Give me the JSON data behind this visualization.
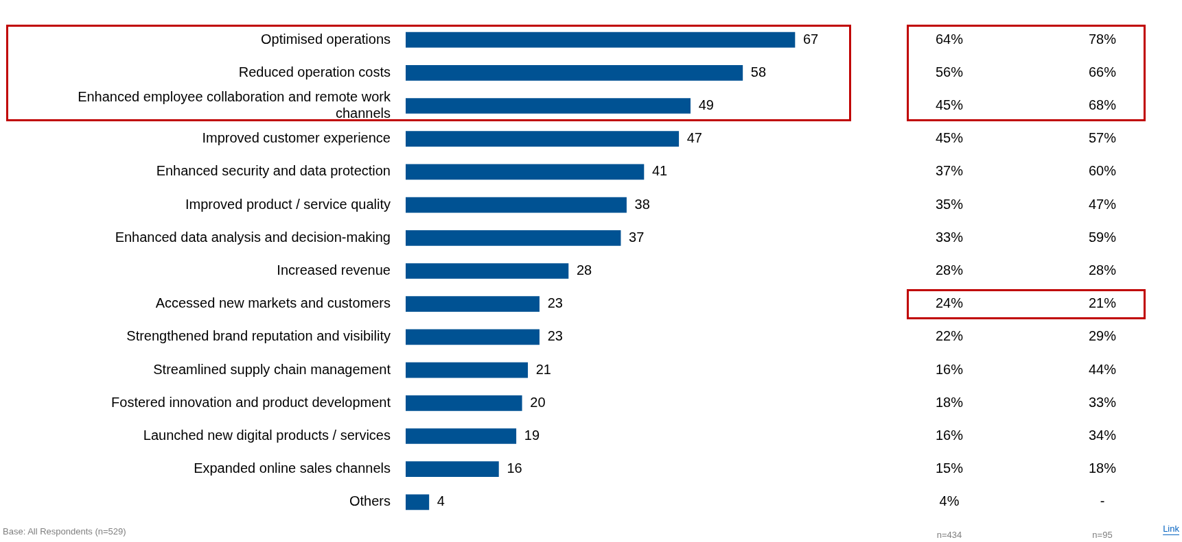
{
  "chart_data": {
    "type": "bar",
    "orientation": "horizontal",
    "data_labels": true,
    "legend": false,
    "grid": false,
    "tick_labels": "y",
    "categories": [
      "Optimised operations",
      "Reduced operation costs",
      "Enhanced employee collaboration and remote work channels",
      "Improved customer experience",
      "Enhanced security and data protection",
      "Improved product / service quality",
      "Enhanced data analysis and decision-making",
      "Increased revenue",
      "Accessed new markets and customers",
      "Strengthened brand reputation and visibility",
      "Streamlined supply chain management",
      "Fostered innovation and product development",
      "Launched new digital products / services",
      "Expanded online sales channels",
      "Others"
    ],
    "values": [
      67,
      58,
      49,
      47,
      41,
      38,
      37,
      28,
      23,
      23,
      21,
      20,
      19,
      16,
      4
    ],
    "color": "#005293",
    "annotations": [
      "64%",
      "78%",
      "56%",
      "66%",
      "45%",
      "68%",
      "45%",
      "57%",
      "37%",
      "60%",
      "35%",
      "47%",
      "33%",
      "59%",
      "28%",
      "28%",
      "24%",
      "21%",
      "22%",
      "29%",
      "16%",
      "44%",
      "18%",
      "33%",
      "16%",
      "34%",
      "15%",
      "18%",
      "4%",
      "-",
      "n=434",
      "n=95",
      "Base: All Respondents (n=529)",
      "Link"
    ]
  }
}
